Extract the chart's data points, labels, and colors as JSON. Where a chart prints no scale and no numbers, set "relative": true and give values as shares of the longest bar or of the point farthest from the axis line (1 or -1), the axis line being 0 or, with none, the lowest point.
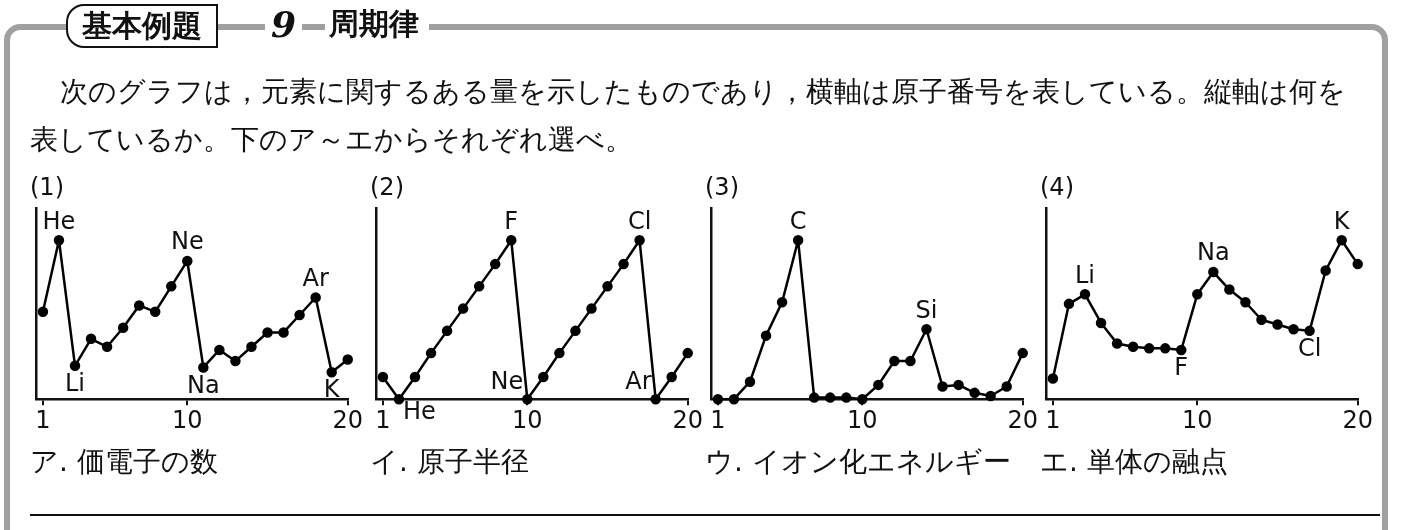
{
  "chart_data": [
    {
      "type": "line",
      "title": "(1)",
      "relative": true,
      "x": [
        1,
        2,
        3,
        4,
        5,
        6,
        7,
        8,
        9,
        10,
        11,
        12,
        13,
        14,
        15,
        16,
        17,
        18,
        19,
        20
      ],
      "xlim": [
        0.6,
        20
      ],
      "xticks": [
        1,
        10,
        20
      ],
      "marker": "circle",
      "legend": false,
      "series": [
        {
          "color": "#000000",
          "values": [
            0.55,
            1,
            0.21,
            0.38,
            0.33,
            0.45,
            0.59,
            0.55,
            0.71,
            0.87,
            0.2,
            0.31,
            0.24,
            0.33,
            0.42,
            0.42,
            0.53,
            0.64,
            0.17,
            0.25
          ]
        }
      ],
      "annotations": [
        "基本例題",
        "9",
        "周期律",
        "次のグラフは，元素に関するある量を示したものであり，横軸は原子番号を表している。縦軸は何を表しているか。下のア～エからそれぞれ選べ。",
        {
          "text": "He",
          "x": 2,
          "y": 1
        },
        {
          "text": "Li",
          "x": 3,
          "y": 0.21
        },
        {
          "text": "Ne",
          "x": 10,
          "y": 0.87
        },
        {
          "text": "Na",
          "x": 11,
          "y": 0.2
        },
        {
          "text": "Ar",
          "x": 18,
          "y": 0.64
        },
        {
          "text": "K",
          "x": 19,
          "y": 0.17
        },
        "ア. 価電子の数"
      ]
    },
    {
      "type": "line",
      "title": "(2)",
      "relative": true,
      "x": [
        1,
        2,
        3,
        4,
        5,
        6,
        7,
        8,
        9,
        10,
        11,
        12,
        13,
        14,
        15,
        16,
        17,
        18,
        19,
        20
      ],
      "xlim": [
        0.6,
        20
      ],
      "xticks": [
        1,
        10,
        20
      ],
      "marker": "circle",
      "legend": false,
      "series": [
        {
          "color": "#000000",
          "values": [
            0.14,
            0,
            0.14,
            0.29,
            0.43,
            0.57,
            0.71,
            0.85,
            1,
            0,
            0.14,
            0.29,
            0.43,
            0.57,
            0.71,
            0.85,
            1,
            0,
            0.14,
            0.29
          ]
        }
      ],
      "annotations": [
        {
          "text": "He",
          "x": 2,
          "y": 0
        },
        {
          "text": "F",
          "x": 9,
          "y": 1
        },
        {
          "text": "Ne",
          "x": 10,
          "y": 0
        },
        {
          "text": "Cl",
          "x": 17,
          "y": 1
        },
        {
          "text": "Ar",
          "x": 18,
          "y": 0
        },
        "イ. 原子半径"
      ]
    },
    {
      "type": "line",
      "title": "(3)",
      "relative": true,
      "x": [
        1,
        2,
        3,
        4,
        5,
        6,
        7,
        8,
        9,
        10,
        11,
        12,
        13,
        14,
        15,
        16,
        17,
        18,
        19,
        20
      ],
      "xlim": [
        0.6,
        20
      ],
      "xticks": [
        1,
        10,
        20
      ],
      "marker": "circle",
      "legend": false,
      "series": [
        {
          "color": "#000000",
          "values": [
            0,
            0,
            0.11,
            0.4,
            0.61,
            1,
            0.01,
            0.01,
            0.01,
            0,
            0.09,
            0.24,
            0.24,
            0.44,
            0.08,
            0.09,
            0.04,
            0.02,
            0.08,
            0.29
          ]
        }
      ],
      "annotations": [
        {
          "text": "C",
          "x": 6,
          "y": 1
        },
        {
          "text": "Si",
          "x": 14,
          "y": 0.44
        },
        "ウ. イオン化エネルギー"
      ]
    },
    {
      "type": "line",
      "title": "(4)",
      "relative": true,
      "x": [
        1,
        2,
        3,
        4,
        5,
        6,
        7,
        8,
        9,
        10,
        11,
        12,
        13,
        14,
        15,
        16,
        17,
        18,
        19,
        20
      ],
      "xlim": [
        0.6,
        20
      ],
      "xticks": [
        1,
        10,
        20
      ],
      "marker": "circle",
      "legend": false,
      "series": [
        {
          "color": "#000000",
          "values": [
            0.13,
            0.6,
            0.66,
            0.48,
            0.35,
            0.33,
            0.32,
            0.32,
            0.31,
            0.66,
            0.8,
            0.69,
            0.61,
            0.5,
            0.47,
            0.44,
            0.43,
            0.81,
            1,
            0.85
          ]
        }
      ],
      "annotations": [
        {
          "text": "Li",
          "x": 3,
          "y": 0.66
        },
        {
          "text": "F",
          "x": 9,
          "y": 0.31
        },
        {
          "text": "Na",
          "x": 11,
          "y": 0.8
        },
        {
          "text": "Cl",
          "x": 17,
          "y": 0.43
        },
        {
          "text": "K",
          "x": 19,
          "y": 1
        },
        "エ. 単体の融点"
      ]
    }
  ]
}
